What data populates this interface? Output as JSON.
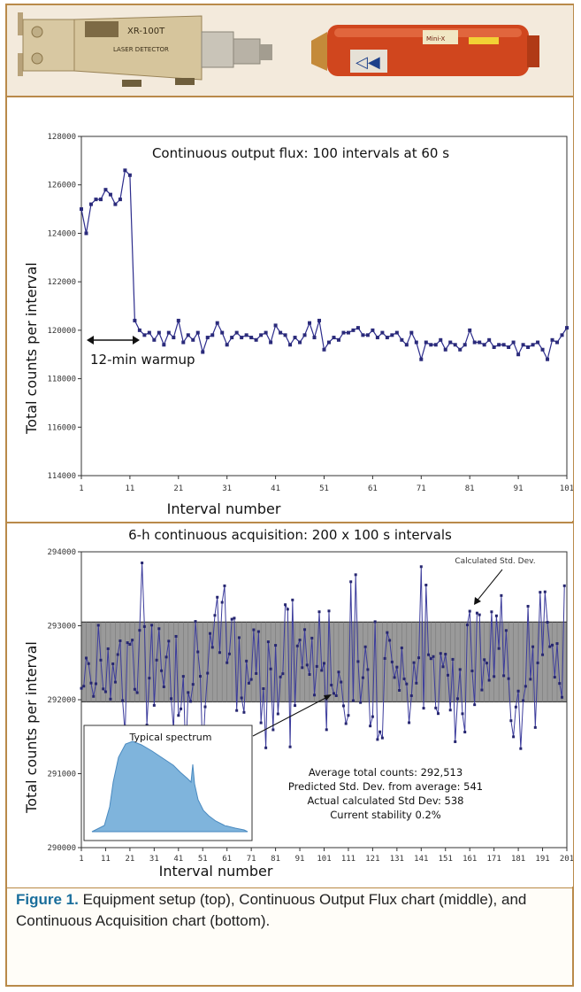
{
  "photos": {
    "detector_label_1": "XR-100T",
    "detector_label_2": "LASER DETECTOR",
    "source_label": "Mini-X"
  },
  "chart_data": [
    {
      "type": "line",
      "title": "Continuous output flux: 100 intervals at 60 s",
      "xlabel": "Interval number",
      "ylabel": "Total counts per interval",
      "xlim": [
        1,
        101
      ],
      "ylim": [
        114000,
        128000
      ],
      "xticks": [
        "1",
        "11",
        "21",
        "31",
        "41",
        "51",
        "61",
        "71",
        "81",
        "91",
        "101"
      ],
      "yticks": [
        "128000",
        "126000",
        "124000",
        "122000",
        "120000",
        "118000",
        "116000",
        "114000"
      ],
      "annotations": [
        {
          "text": "12-min warmup",
          "x_start": 1,
          "x_end": 11,
          "y": 118400
        }
      ],
      "x": [
        1,
        2,
        3,
        4,
        5,
        6,
        7,
        8,
        9,
        10,
        11,
        12,
        13,
        14,
        15,
        16,
        17,
        18,
        19,
        20,
        21,
        22,
        23,
        24,
        25,
        26,
        27,
        28,
        29,
        30,
        31,
        32,
        33,
        34,
        35,
        36,
        37,
        38,
        39,
        40,
        41,
        42,
        43,
        44,
        45,
        46,
        47,
        48,
        49,
        50,
        51,
        52,
        53,
        54,
        55,
        56,
        57,
        58,
        59,
        60,
        61,
        62,
        63,
        64,
        65,
        66,
        67,
        68,
        69,
        70,
        71,
        72,
        73,
        74,
        75,
        76,
        77,
        78,
        79,
        80,
        81,
        82,
        83,
        84,
        85,
        86,
        87,
        88,
        89,
        90,
        91,
        92,
        93,
        94,
        95,
        96,
        97,
        98,
        99,
        100,
        101
      ],
      "values": [
        125000,
        124000,
        125200,
        125400,
        125400,
        125800,
        125600,
        125200,
        125400,
        126600,
        126400,
        120400,
        120000,
        119800,
        119900,
        119600,
        119900,
        119400,
        119900,
        119700,
        120400,
        119500,
        119800,
        119600,
        119900,
        119100,
        119700,
        119800,
        120300,
        119900,
        119400,
        119700,
        119900,
        119700,
        119800,
        119700,
        119600,
        119800,
        119900,
        119500,
        120200,
        119900,
        119800,
        119400,
        119700,
        119500,
        119800,
        120300,
        119700,
        120400,
        119200,
        119500,
        119700,
        119600,
        119900,
        119900,
        120000,
        120100,
        119800,
        119800,
        120000,
        119700,
        119900,
        119700,
        119800,
        119900,
        119600,
        119400,
        119900,
        119500,
        118800,
        119500,
        119400,
        119400,
        119600,
        119200,
        119500,
        119400,
        119200,
        119400,
        120000,
        119500,
        119500,
        119400,
        119600,
        119300,
        119400,
        119400,
        119300,
        119500,
        119000,
        119400,
        119300,
        119400,
        119500,
        119200,
        118800,
        119600,
        119500,
        119800,
        120100
      ]
    },
    {
      "type": "line",
      "title": "6-h continuous acquisition: 200 x 100 s intervals",
      "xlabel": "Interval number",
      "ylabel": "Total counts per interval",
      "xlim": [
        1,
        201
      ],
      "ylim": [
        290000,
        294000
      ],
      "xticks": [
        "1",
        "11",
        "21",
        "31",
        "41",
        "51",
        "61",
        "71",
        "81",
        "91",
        "101",
        "111",
        "121",
        "131",
        "141",
        "151",
        "161",
        "171",
        "181",
        "191",
        "201"
      ],
      "yticks": [
        "294000",
        "293000",
        "292000",
        "291000",
        "290000"
      ],
      "std_band": [
        291971,
        293051
      ],
      "annotations": [
        {
          "text": "Calculated Std. Dev."
        },
        {
          "text": "Typical spectrum"
        }
      ],
      "stats": [
        "Average total counts: 292,513",
        "Predicted Std. Dev. from average: 541",
        "Actual calculated Std Dev: 538",
        "Current stability 0.2%"
      ]
    }
  ],
  "caption": {
    "label": "Figure 1.",
    "text": "Equipment setup (top), Continuous Output Flux chart (middle), and Continuous Acquisition chart (bottom)."
  }
}
